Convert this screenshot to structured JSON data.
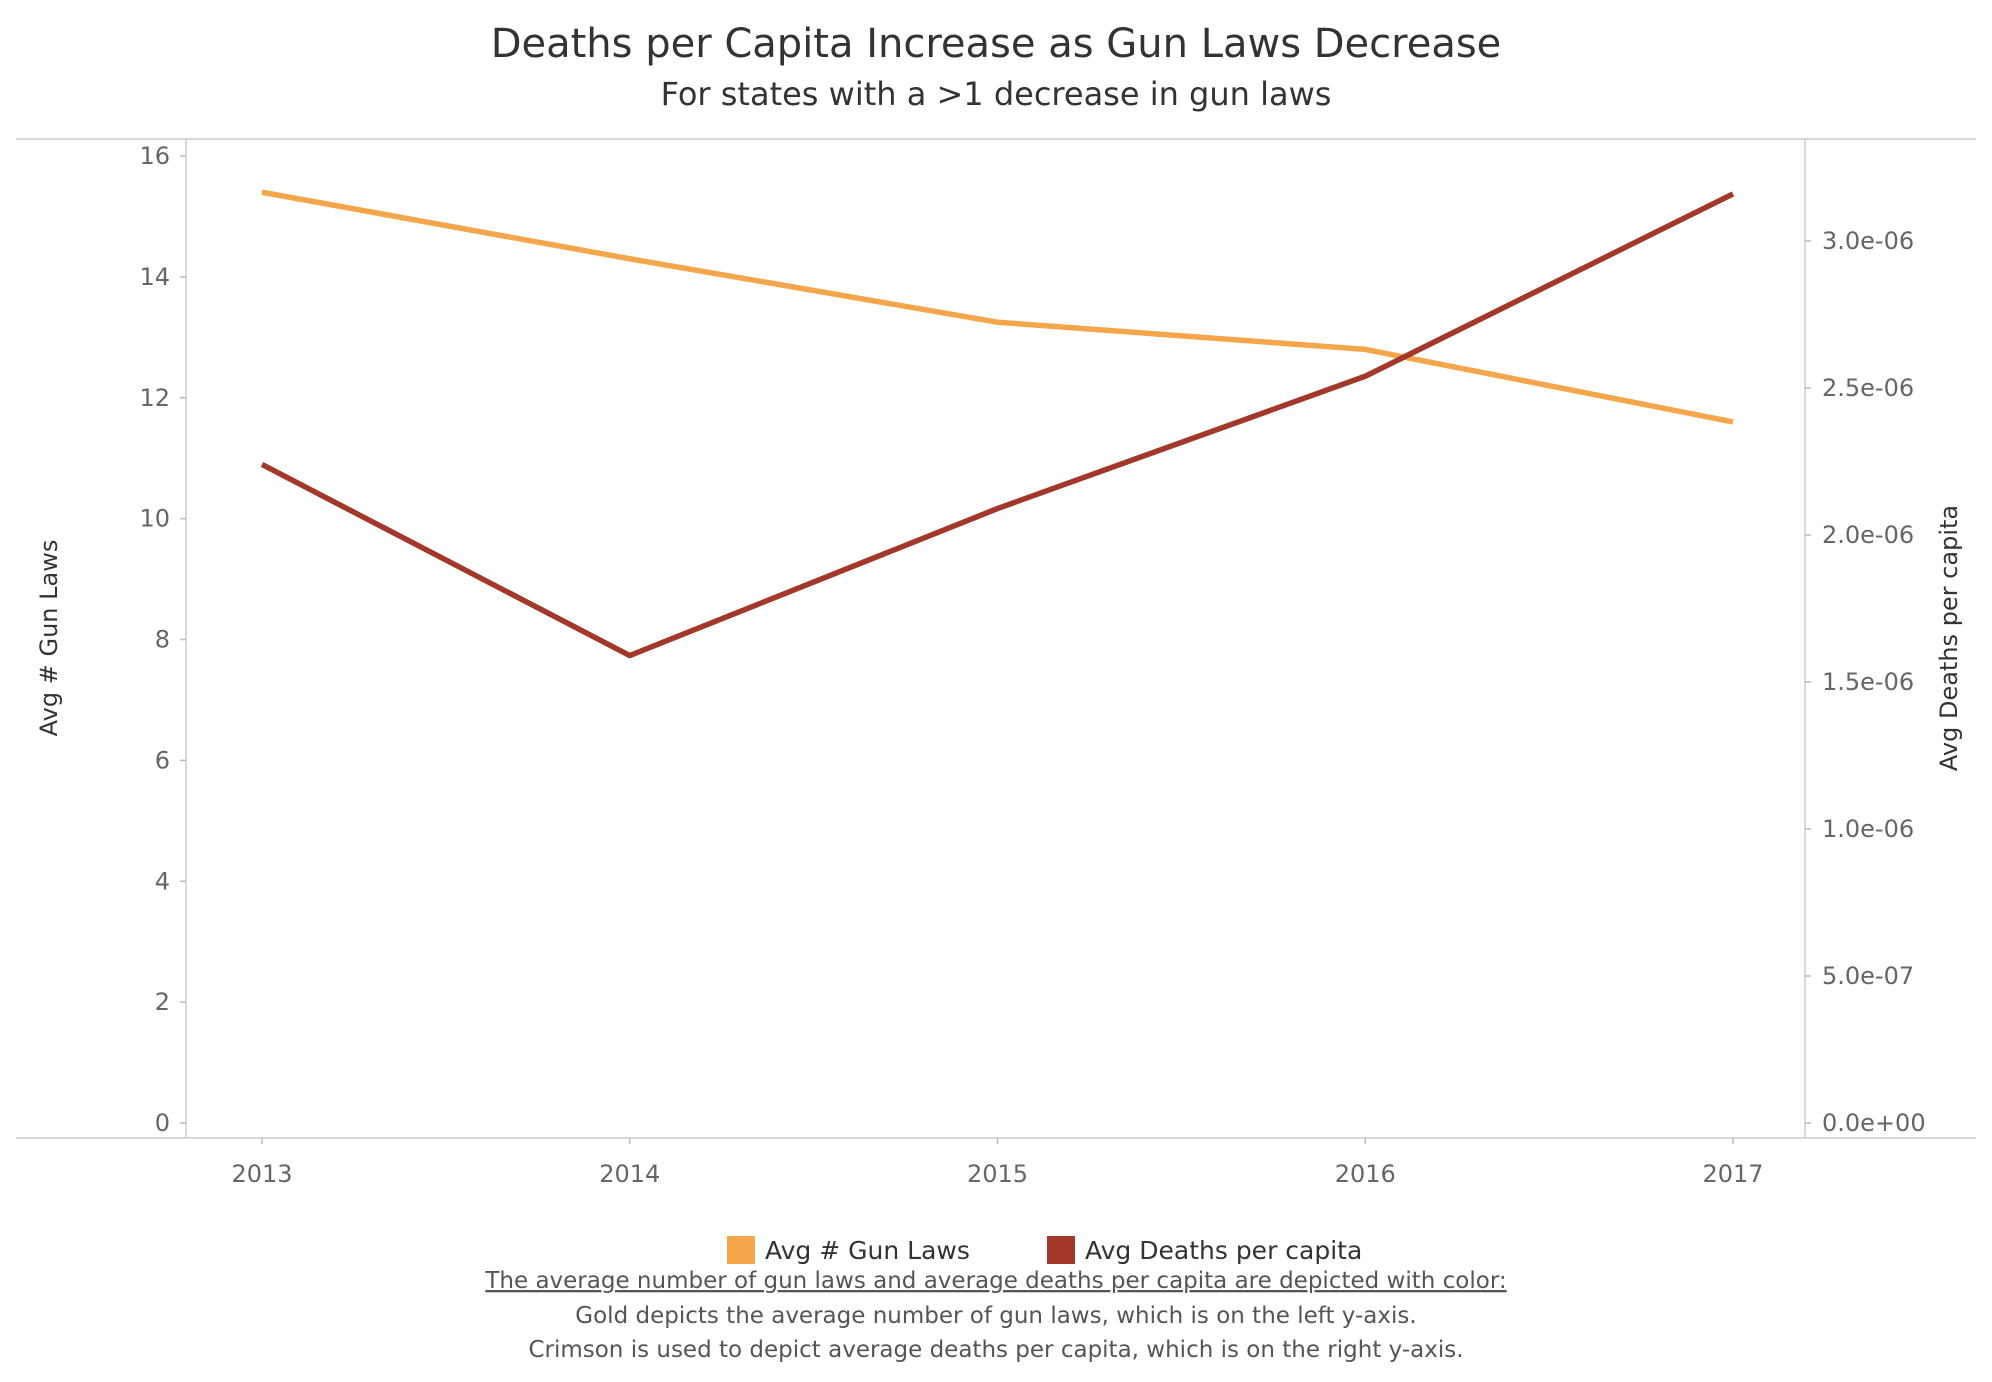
{
  "chart_data": {
    "type": "line",
    "title": "Deaths per Capita Increase as Gun Laws Decrease",
    "subtitle": "For states with a >1 decrease in gun laws",
    "x": [
      "2013",
      "2014",
      "2015",
      "2016",
      "2017"
    ],
    "xlabel": "",
    "y_left": {
      "label": "Avg # Gun Laws",
      "ylim": [
        0,
        16
      ],
      "ticks": [
        "0",
        "2",
        "4",
        "6",
        "8",
        "10",
        "12",
        "14",
        "16"
      ]
    },
    "y_right": {
      "label": "Avg Deaths per capita",
      "ylim": [
        0,
        3.3e-06
      ],
      "ticks": [
        "0.0e+00",
        "5.0e-07",
        "1.0e-06",
        "1.5e-06",
        "2.0e-06",
        "2.5e-06",
        "3.0e-06"
      ]
    },
    "series": [
      {
        "name": "Avg # Gun Laws",
        "axis": "left",
        "color": "#F5A54A",
        "values": [
          15.4,
          14.3,
          13.25,
          12.8,
          11.6
        ]
      },
      {
        "name": "Avg Deaths per capita",
        "axis": "right",
        "color": "#A3382A",
        "values": [
          2.24e-06,
          1.59e-06,
          2.09e-06,
          2.54e-06,
          3.16e-06
        ]
      }
    ],
    "grid": false,
    "legend_position": "bottom-center"
  },
  "caption": {
    "heading": "The average number of gun laws  and average deaths per capita are depicted with color:",
    "line1": "Gold depicts the average number of gun laws, which is on the left y-axis.",
    "line2": "Crimson is used to depict average deaths per capita, which is on the right y-axis."
  }
}
